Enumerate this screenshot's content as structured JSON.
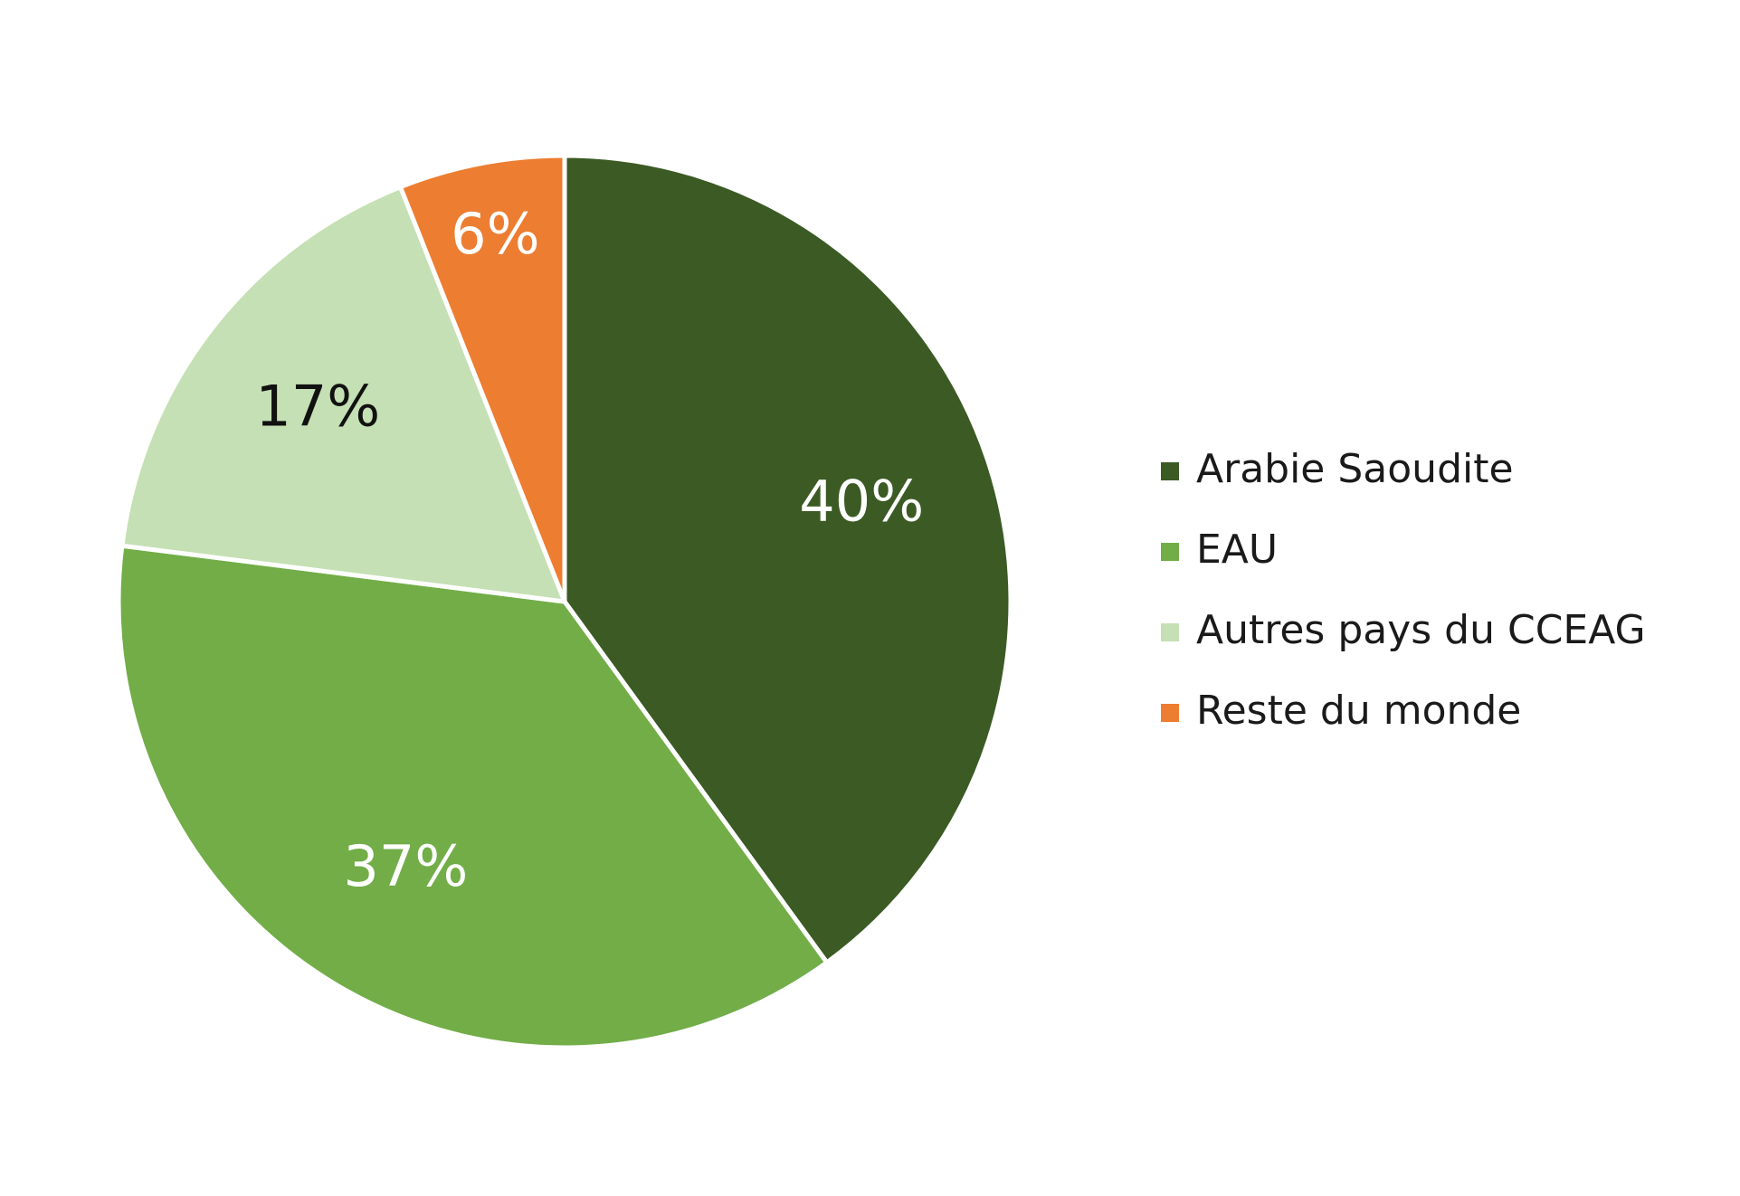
{
  "chart_data": {
    "type": "pie",
    "categories": [
      "Arabie Saoudite",
      "EAU",
      "Autres pays du CCEAG",
      "Reste du monde"
    ],
    "values": [
      40,
      37,
      17,
      6
    ],
    "value_labels": [
      "40%",
      "37%",
      "17%",
      "6%"
    ],
    "colors": [
      "#3b5a24",
      "#72ad48",
      "#c5e0b4",
      "#ed7d31"
    ],
    "label_colors": [
      "#ffffff",
      "#ffffff",
      "#111111",
      "#ffffff"
    ],
    "legend": "right"
  }
}
